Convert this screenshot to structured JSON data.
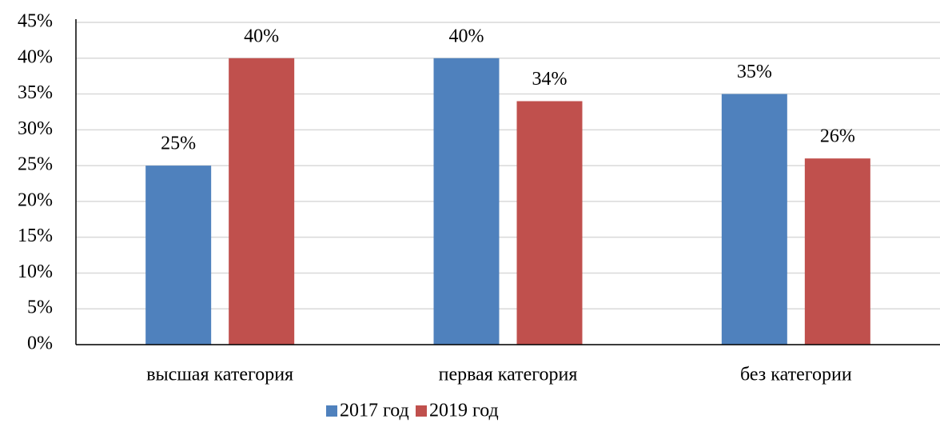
{
  "chart_data": {
    "type": "bar",
    "categories": [
      "высшая категория",
      "первая категория",
      "без категории"
    ],
    "series": [
      {
        "name": "2017 год",
        "color": "#4f81bd",
        "values": [
          25,
          40,
          35
        ],
        "value_labels": [
          "25%",
          "40%",
          "35%"
        ]
      },
      {
        "name": "2019 год",
        "color": "#c0504d",
        "values": [
          40,
          34,
          26
        ],
        "value_labels": [
          "40%",
          "34%",
          "26%"
        ]
      }
    ],
    "ylim": [
      0,
      45
    ],
    "yticks": [
      {
        "value": 0,
        "label": "0%"
      },
      {
        "value": 5,
        "label": "5%"
      },
      {
        "value": 10,
        "label": "10%"
      },
      {
        "value": 15,
        "label": "15%"
      },
      {
        "value": 20,
        "label": "20%"
      },
      {
        "value": 25,
        "label": "25%"
      },
      {
        "value": 30,
        "label": "30%"
      },
      {
        "value": 35,
        "label": "35%"
      },
      {
        "value": 40,
        "label": "40%"
      },
      {
        "value": 45,
        "label": "45%"
      }
    ],
    "grid": true,
    "legend": "bottom"
  }
}
